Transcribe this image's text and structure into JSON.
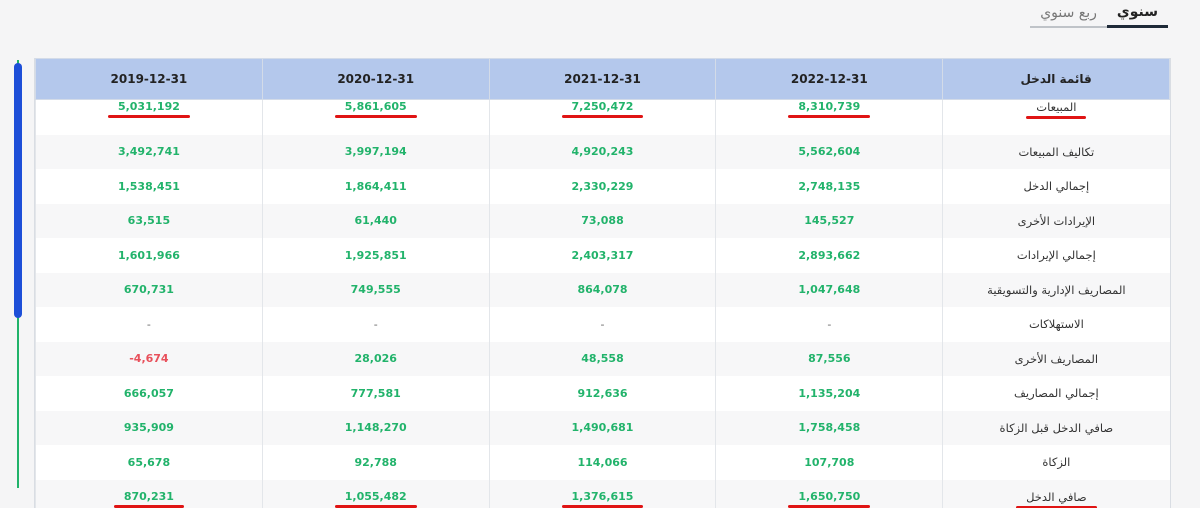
{
  "tabs": [
    {
      "label": "سنوي",
      "active": true
    },
    {
      "label": "ربع سنوي",
      "active": false
    }
  ],
  "table": {
    "header_label": "قائمة الدخل",
    "periods": [
      "2022-12-31",
      "2021-12-31",
      "2020-12-31",
      "2019-12-31"
    ],
    "rows": [
      {
        "label": "المبيعات",
        "values": [
          "8,310,739",
          "7,250,472",
          "5,861,605",
          "5,031,192"
        ],
        "highlight": true
      },
      {
        "label": "تكاليف المبيعات",
        "values": [
          "5,562,604",
          "4,920,243",
          "3,997,194",
          "3,492,741"
        ]
      },
      {
        "label": "إجمالي الدخل",
        "values": [
          "2,748,135",
          "2,330,229",
          "1,864,411",
          "1,538,451"
        ]
      },
      {
        "label": "الإيرادات الأخرى",
        "values": [
          "145,527",
          "73,088",
          "61,440",
          "63,515"
        ]
      },
      {
        "label": "إجمالي الإيرادات",
        "values": [
          "2,893,662",
          "2,403,317",
          "1,925,851",
          "1,601,966"
        ]
      },
      {
        "label": "المصاريف الإدارية والتسويقية",
        "values": [
          "1,047,648",
          "864,078",
          "749,555",
          "670,731"
        ]
      },
      {
        "label": "الاستهلاكات",
        "values": [
          "-",
          "-",
          "-",
          "-"
        ]
      },
      {
        "label": "المصاريف الأخرى",
        "values": [
          "87,556",
          "48,558",
          "28,026",
          "4,674-"
        ]
      },
      {
        "label": "إجمالي المصاريف",
        "values": [
          "1,135,204",
          "912,636",
          "777,581",
          "666,057"
        ]
      },
      {
        "label": "صافي الدخل قبل الزكاة",
        "values": [
          "1,758,458",
          "1,490,681",
          "1,148,270",
          "935,909"
        ]
      },
      {
        "label": "الزكاة",
        "values": [
          "107,708",
          "114,066",
          "92,788",
          "65,678"
        ]
      },
      {
        "label": "صافي الدخل",
        "values": [
          "1,650,750",
          "1,376,615",
          "1,055,482",
          "870,231"
        ],
        "highlight": true
      }
    ]
  }
}
